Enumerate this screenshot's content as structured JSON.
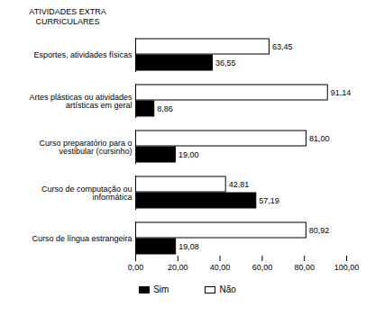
{
  "chart_data": {
    "type": "bar",
    "title": "ATIVIDADES EXTRA CURRICULARES",
    "orientation": "horizontal",
    "categories": [
      "Esportes, atividades físicas",
      "Artes plásticas ou atividades artísticas em geral",
      "Curso preparatório para o vestibular (cursinho)",
      "Curso de computação ou informática",
      "Curso de língua estrangeira"
    ],
    "series": [
      {
        "name": "Sim",
        "color": "#000000",
        "values": [
          36.55,
          8.86,
          19.0,
          57.19,
          19.08
        ],
        "value_labels": [
          "36,55",
          "8,86",
          "19,00",
          "57,19",
          "19,08"
        ]
      },
      {
        "name": "Não",
        "color": "#ffffff",
        "values": [
          63.45,
          91.14,
          81.0,
          42.81,
          80.92
        ],
        "value_labels": [
          "63,45",
          "91,14",
          "81,00",
          "42,81",
          "80,92"
        ]
      }
    ],
    "xlim": [
      0,
      100
    ],
    "xticks": [
      {
        "value": 0,
        "label": "0,00"
      },
      {
        "value": 20,
        "label": "20,00"
      },
      {
        "value": 40,
        "label": "40,00"
      },
      {
        "value": 60,
        "label": "60,00"
      },
      {
        "value": 80,
        "label": "80,00"
      },
      {
        "value": 100,
        "label": "100,00"
      }
    ],
    "data_labels": true,
    "legend": "bottom",
    "grid": false
  }
}
